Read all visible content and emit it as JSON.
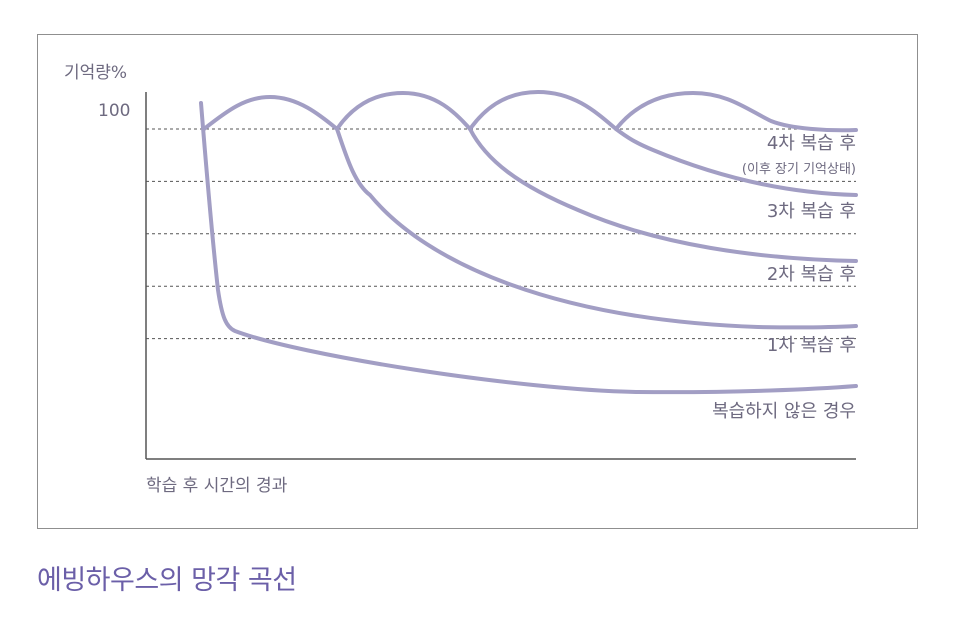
{
  "caption": "에빙하우스의 망각 곡선",
  "colors": {
    "curve": "#a29ec4",
    "text": "#6e6a80",
    "caption": "#6b5fa8",
    "grid": "#555555",
    "axis": "#555555"
  },
  "chart_data": {
    "type": "line",
    "title": "",
    "xlabel": "학습 후 시간의 경과",
    "ylabel": "기억량%",
    "y_tick_label": "100",
    "ylim": [
      0,
      100
    ],
    "reference_lines": [
      100,
      80,
      60,
      40,
      20
    ],
    "series": [
      {
        "name": "4차 복습 후",
        "sublabel": "(이후 장기 기억상태)",
        "end_value": 80
      },
      {
        "name": "3차 복습 후",
        "end_value": 60
      },
      {
        "name": "2차 복습 후",
        "end_value": 40
      },
      {
        "name": "1차 복습 후",
        "end_value": 20
      },
      {
        "name": "복습하지 않은 경우",
        "end_value": 0
      }
    ]
  }
}
